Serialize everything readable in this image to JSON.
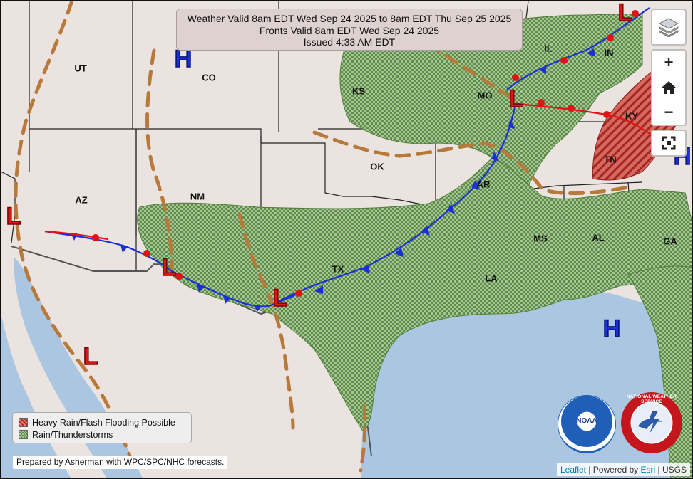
{
  "title": {
    "line1": "Weather Valid 8am EDT Wed Sep 24 2025 to 8am EDT Thu Sep 25 2025",
    "line2": "Fronts Valid 8am EDT Wed Sep 24 2025",
    "line3": "Issued 4:33 AM EDT"
  },
  "states": [
    "UT",
    "CO",
    "KS",
    "MO",
    "IL",
    "IN",
    "KY",
    "TN",
    "OK",
    "AR",
    "AZ",
    "NM",
    "TX",
    "MS",
    "AL",
    "GA",
    "LA"
  ],
  "pressure_centers": [
    "H",
    "L",
    "L",
    "L",
    "L",
    "L",
    "L",
    "L",
    "H",
    "H"
  ],
  "legend": {
    "heavy_rain": "Heavy Rain/Flash Flooding Possible",
    "rain": "Rain/Thunderstorms"
  },
  "prepared_by": "Prepared by Asherman with WPC/SPC/NHC forecasts.",
  "attribution": {
    "leaflet": "Leaflet",
    "powered": "| Powered by",
    "esri": "Esri",
    "usgs": "| USGS"
  },
  "controls": {
    "zoom_in": "+",
    "zoom_out": "−"
  },
  "logos": {
    "noaa": "NOAA",
    "nws": "NATIONAL WEATHER SERVICE"
  },
  "colors": {
    "land": "#ebe3df",
    "water": "#aac6e0",
    "rain": "#6b9a55",
    "heavy_rain": "#c83a33",
    "cold_front": "#1a2fd6",
    "warm_front": "#e01414",
    "trough": "#b77a3a"
  }
}
